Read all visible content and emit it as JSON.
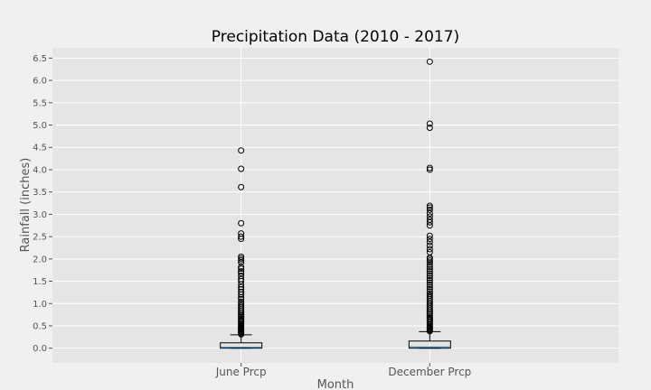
{
  "chart_data": {
    "type": "boxplot",
    "title": "Precipitation Data (2010 - 2017)",
    "xlabel": "Month",
    "ylabel": "Rainfall (inches)",
    "ylim": [
      -0.33,
      6.73
    ],
    "yticks": [
      "0.0",
      "0.5",
      "1.0",
      "1.5",
      "2.0",
      "2.5",
      "3.0",
      "3.5",
      "4.0",
      "4.5",
      "5.0",
      "5.5",
      "6.0",
      "6.5"
    ],
    "grid": true,
    "categories": [
      "June Prcp",
      "December Prcp"
    ],
    "boxes": [
      {
        "name": "June Prcp",
        "whisker_low": 0.0,
        "q1": 0.0,
        "median": 0.02,
        "q3": 0.12,
        "whisker_high": 0.3,
        "outliers": [
          0.31,
          0.33,
          0.35,
          0.37,
          0.39,
          0.41,
          0.43,
          0.45,
          0.47,
          0.5,
          0.52,
          0.55,
          0.58,
          0.6,
          0.63,
          0.66,
          0.7,
          0.73,
          0.76,
          0.8,
          0.84,
          0.88,
          0.92,
          0.96,
          1.0,
          1.04,
          1.1,
          1.14,
          1.2,
          1.26,
          1.32,
          1.37,
          1.43,
          1.5,
          1.55,
          1.62,
          1.68,
          1.72,
          1.78,
          1.82,
          1.92,
          1.97,
          2.01,
          2.05,
          2.45,
          2.5,
          2.57,
          2.8,
          3.61,
          4.02,
          4.43
        ]
      },
      {
        "name": "December Prcp",
        "whisker_low": 0.0,
        "q1": 0.0,
        "median": 0.03,
        "q3": 0.16,
        "whisker_high": 0.37,
        "outliers": [
          0.38,
          0.4,
          0.42,
          0.44,
          0.46,
          0.48,
          0.5,
          0.53,
          0.56,
          0.59,
          0.62,
          0.65,
          0.68,
          0.71,
          0.75,
          0.78,
          0.82,
          0.86,
          0.9,
          0.94,
          0.98,
          1.02,
          1.06,
          1.1,
          1.14,
          1.18,
          1.22,
          1.27,
          1.32,
          1.37,
          1.42,
          1.47,
          1.52,
          1.57,
          1.62,
          1.67,
          1.72,
          1.77,
          1.82,
          1.87,
          1.92,
          1.96,
          2.0,
          2.03,
          2.15,
          2.22,
          2.3,
          2.38,
          2.45,
          2.52,
          2.75,
          2.82,
          2.88,
          2.95,
          3.02,
          3.1,
          3.15,
          3.19,
          4.0,
          4.04,
          4.94,
          5.03,
          6.42
        ]
      }
    ]
  },
  "colors": {
    "figure_bg": "#f0f0f0",
    "plot_bg": "#e5e5e5",
    "grid": "#ffffff",
    "box_edge": "#000000",
    "median": "#1f77b4",
    "outlier": "#000000"
  }
}
